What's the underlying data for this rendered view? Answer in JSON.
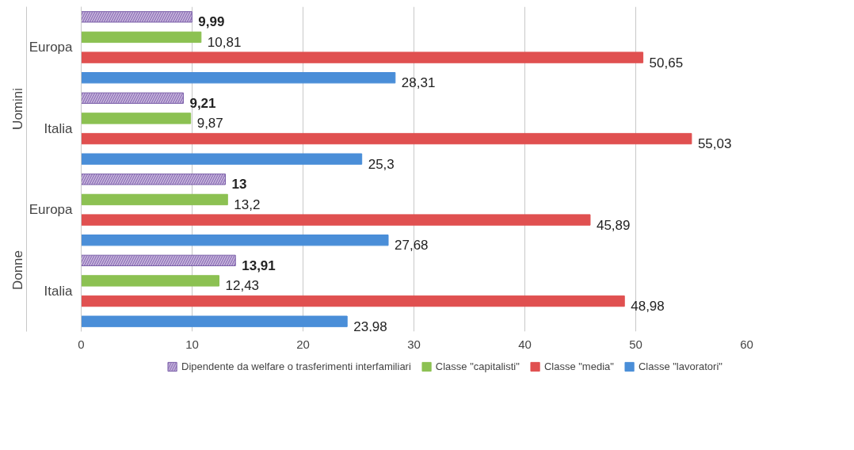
{
  "chart_data": {
    "type": "bar",
    "orientation": "horizontal",
    "categories": [
      "Europa",
      "Italia",
      "Europa",
      "Italia"
    ],
    "series": [
      {
        "name": "Dipendente da welfare o trasferimenti interfamiliari",
        "color": "#9b7fc0",
        "values": [
          9.99,
          9.21,
          13,
          13.91
        ],
        "value_labels": [
          "9,99",
          "9,21",
          "13",
          "13,91"
        ]
      },
      {
        "name": "Classe \"capitalisti\"",
        "color": "#8cc152",
        "values": [
          10.81,
          9.87,
          13.2,
          12.43
        ],
        "value_labels": [
          "10,81",
          "9,87",
          "13,2",
          "12,43"
        ]
      },
      {
        "name": "Classe \"media\"",
        "color": "#e05050",
        "values": [
          50.65,
          55.03,
          45.89,
          48.98
        ],
        "value_labels": [
          "50,65",
          "55,03",
          "45,89",
          "48,98"
        ]
      },
      {
        "name": "Classe \"lavoratori\"",
        "color": "#4a8ed8",
        "values": [
          28.31,
          25.3,
          27.68,
          23.98
        ],
        "value_labels": [
          "28,31",
          "25,3",
          "27,68",
          "23,98"
        ]
      }
    ],
    "annotations": [
      "Uomini",
      "Donne"
    ],
    "xlim": [
      0,
      60
    ],
    "xticks": [
      0,
      10,
      20,
      30,
      40,
      50,
      60
    ],
    "grid": "x",
    "legend": "bottom"
  }
}
